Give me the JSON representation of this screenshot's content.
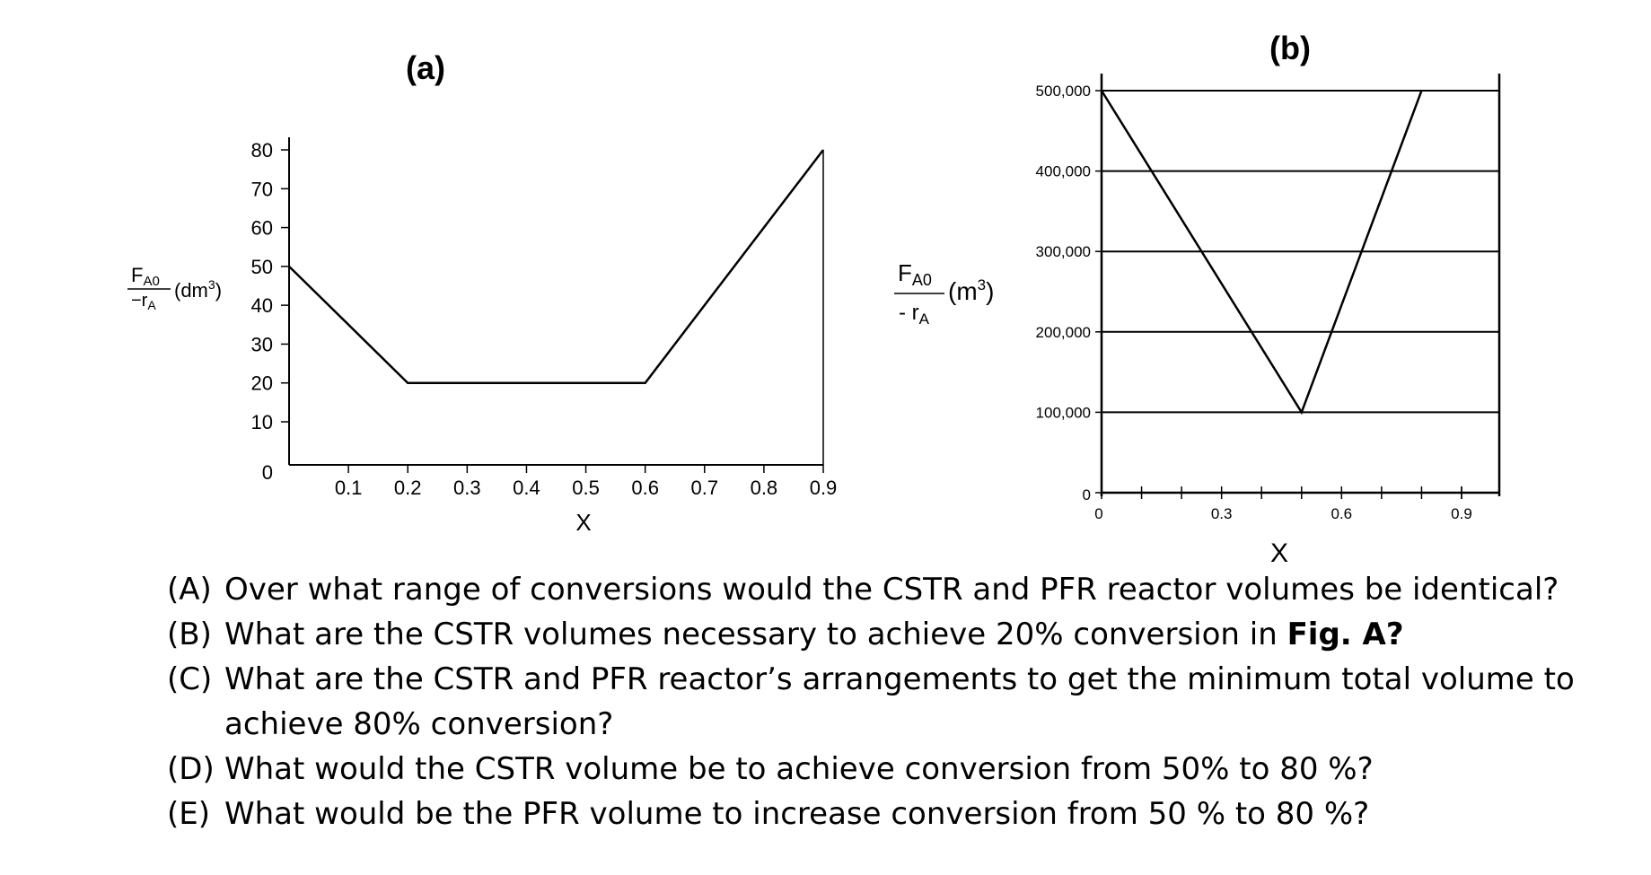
{
  "chart_data": [
    {
      "type": "line",
      "panel_label": "(a)",
      "xlabel": "X",
      "ylabel": {
        "numerator": "F",
        "numerator_sub": "A0",
        "denominator": "−r",
        "denominator_sub": "A",
        "unit": "(dm",
        "unit_sup": "3",
        "unit_close": ")"
      },
      "x_ticks": [
        "0.1",
        "0.2",
        "0.3",
        "0.4",
        "0.5",
        "0.6",
        "0.7",
        "0.8",
        "0.9"
      ],
      "x_tick_values": [
        0.1,
        0.2,
        0.3,
        0.4,
        0.5,
        0.6,
        0.7,
        0.8,
        0.9
      ],
      "y_ticks": [
        "0",
        "10",
        "20",
        "30",
        "40",
        "50",
        "60",
        "70",
        "80"
      ],
      "y_tick_values": [
        0,
        10,
        20,
        30,
        40,
        50,
        60,
        70,
        80
      ],
      "xlim": [
        0,
        0.9
      ],
      "ylim": [
        0,
        80
      ],
      "x": [
        0,
        0.2,
        0.6,
        0.9
      ],
      "y": [
        50,
        20,
        20,
        80
      ],
      "grid": false
    },
    {
      "type": "line",
      "panel_label": "(b)",
      "xlabel": "X",
      "ylabel": {
        "numerator": "F",
        "numerator_sub": "A0",
        "denominator": "- r",
        "denominator_sub": "A",
        "unit": "(m",
        "unit_sup": "3",
        "unit_close": ")"
      },
      "x_ticks": [
        "0",
        "0.3",
        "0.6",
        "0.9"
      ],
      "x_tick_values": [
        0,
        0.3,
        0.6,
        0.9
      ],
      "x_minor_tick_values": [
        0.1,
        0.2,
        0.4,
        0.5,
        0.7,
        0.8,
        0.9
      ],
      "y_ticks": [
        "0",
        "100,000",
        "200,000",
        "300,000",
        "400,000",
        "500,000"
      ],
      "y_tick_values": [
        0,
        100000,
        200000,
        300000,
        400000,
        500000
      ],
      "xlim": [
        0,
        1.0
      ],
      "ylim": [
        0,
        500000
      ],
      "x": [
        0,
        0.5,
        0.8
      ],
      "y": [
        500000,
        100000,
        500000
      ],
      "grid": true
    }
  ],
  "questions": [
    {
      "label": "(A)",
      "text": "Over what range of conversions would the CSTR and PFR reactor volumes be identical?"
    },
    {
      "label": "(B)",
      "text": "What are the CSTR volumes necessary to achieve 20% conversion in ",
      "bold": "Fig. A?"
    },
    {
      "label": "(C)",
      "text": "What are the CSTR and PFR reactor’s arrangements to get the minimum total volume to achieve 80% conversion?"
    },
    {
      "label": "(D)",
      "text": "What would the CSTR volume be to achieve conversion from 50% to 80 %?"
    },
    {
      "label": "(E)",
      "text": "What would be the PFR volume to increase conversion from 50 % to 80 %?"
    }
  ]
}
